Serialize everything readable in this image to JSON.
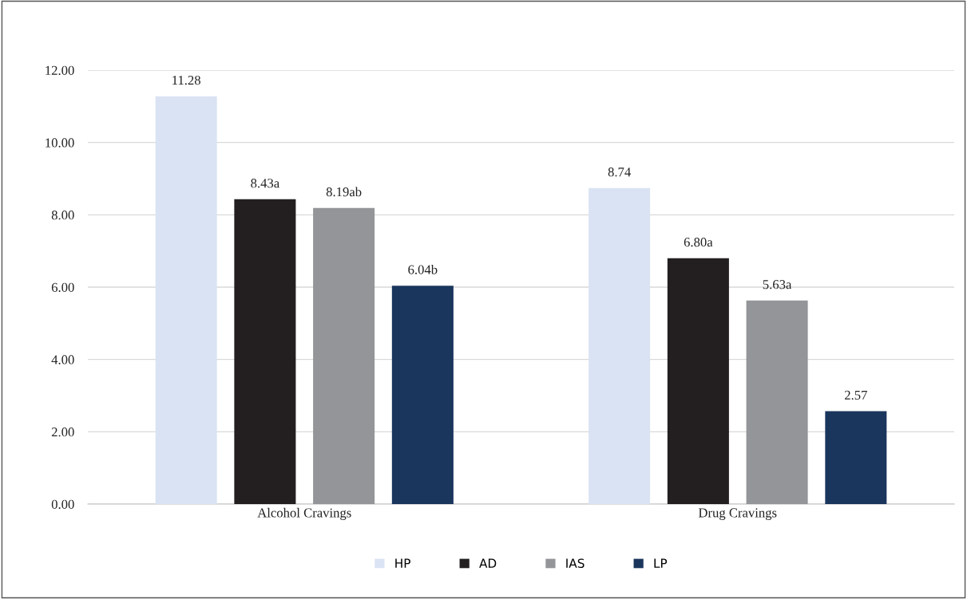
{
  "chart_data": {
    "type": "bar",
    "categories": [
      "Alcohol Cravings",
      "Drug Cravings"
    ],
    "series": [
      {
        "name": "HP",
        "color": "#dae3f3",
        "values": [
          11.28,
          8.74
        ],
        "value_labels": [
          "11.28",
          "8.74"
        ]
      },
      {
        "name": "AD",
        "color": "#231f20",
        "values": [
          8.43,
          6.8
        ],
        "value_labels": [
          "8.43a",
          "6.80a"
        ]
      },
      {
        "name": "IAS",
        "color": "#939598",
        "values": [
          8.19,
          5.63
        ],
        "value_labels": [
          "8.19ab",
          "5.63a"
        ]
      },
      {
        "name": "LP",
        "color": "#1b365d",
        "values": [
          6.04,
          2.57
        ],
        "value_labels": [
          "6.04b",
          "2.57"
        ]
      }
    ],
    "ylim": [
      0,
      12
    ],
    "yticks": [
      {
        "value": 0,
        "label": "0.00"
      },
      {
        "value": 2,
        "label": "2.00"
      },
      {
        "value": 4,
        "label": "4.00"
      },
      {
        "value": 6,
        "label": "6.00"
      },
      {
        "value": 8,
        "label": "8.00"
      },
      {
        "value": 10,
        "label": "10.00"
      },
      {
        "value": 12,
        "label": "12.00"
      }
    ],
    "grid": "y",
    "legend": "bottom"
  }
}
